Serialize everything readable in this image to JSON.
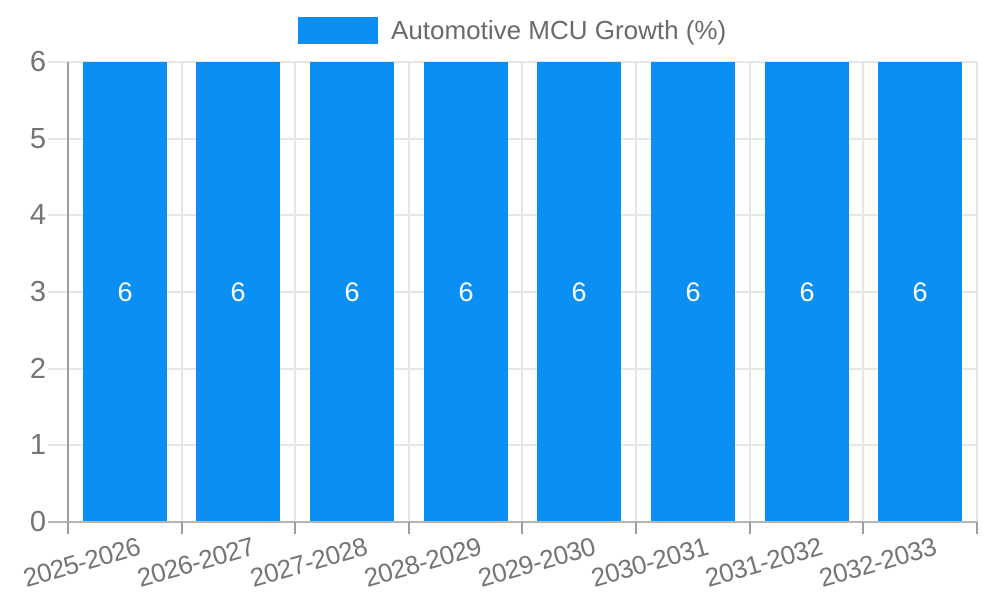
{
  "legend": {
    "label": "Automotive MCU Growth (%)",
    "swatch_color": "#0a90f5"
  },
  "colors": {
    "bar": "#0a90f5",
    "grid": "#e6e6e6",
    "baseline": "#b4b4b4",
    "axis": "#9e9e9e",
    "axis_text": "#757575",
    "value_label_text": "#ffffff"
  },
  "chart_data": {
    "type": "bar",
    "title": "Automotive MCU Growth (%)",
    "series": [
      {
        "name": "Automotive MCU Growth (%)",
        "values": [
          6,
          6,
          6,
          6,
          6,
          6,
          6,
          6
        ]
      }
    ],
    "categories": [
      "2025-2026",
      "2026-2027",
      "2027-2028",
      "2028-2029",
      "2029-2030",
      "2030-2031",
      "2031-2032",
      "2032-2033"
    ],
    "values": [
      6,
      6,
      6,
      6,
      6,
      6,
      6,
      6
    ],
    "value_labels": [
      "6",
      "6",
      "6",
      "6",
      "6",
      "6",
      "6",
      "6"
    ],
    "xlabel": "",
    "ylabel": "",
    "ylim": [
      0,
      6
    ],
    "yticks": [
      0,
      1,
      2,
      3,
      4,
      5,
      6
    ],
    "grid": true,
    "legend_position": "top",
    "x_label_rotation_deg": -16,
    "bar_color": "#0a90f5"
  }
}
